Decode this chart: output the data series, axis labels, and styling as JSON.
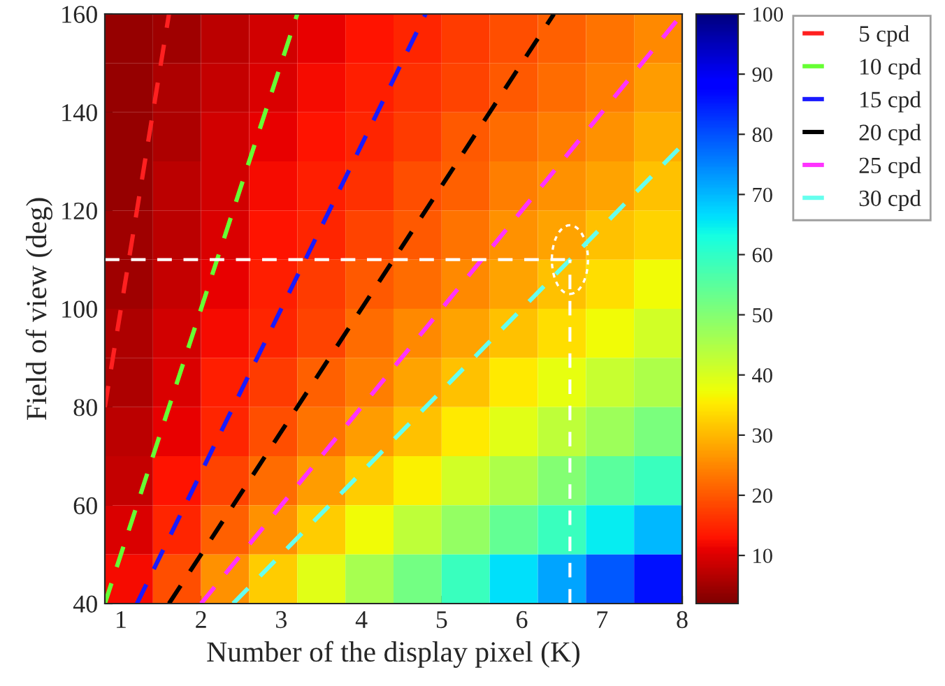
{
  "chart_data": [
    {
      "type": "heatmap",
      "xlabel": "Number of the display pixel (K)",
      "ylabel": "Field of view (deg)",
      "x": [
        1.1,
        1.7,
        2.3,
        2.9,
        3.5,
        4.1,
        4.7,
        5.3,
        5.9,
        6.5,
        7.1,
        7.7
      ],
      "y": [
        155,
        145,
        135,
        125,
        115,
        105,
        95,
        85,
        75,
        65,
        55,
        45
      ],
      "cells": [
        [
          4,
          5,
          7,
          9,
          11,
          13,
          15,
          17,
          19,
          21,
          23,
          25
        ],
        [
          4,
          6,
          8,
          10,
          12,
          14,
          16,
          18,
          20,
          22,
          24,
          27
        ],
        [
          4,
          6,
          9,
          11,
          13,
          15,
          17,
          20,
          22,
          24,
          26,
          29
        ],
        [
          4,
          7,
          9,
          12,
          14,
          16,
          19,
          21,
          24,
          26,
          28,
          31
        ],
        [
          5,
          7,
          10,
          13,
          15,
          18,
          20,
          23,
          26,
          28,
          31,
          33
        ],
        [
          5,
          8,
          11,
          14,
          17,
          20,
          22,
          25,
          28,
          31,
          34,
          37
        ],
        [
          6,
          9,
          12,
          15,
          18,
          22,
          25,
          28,
          31,
          34,
          37,
          41
        ],
        [
          6,
          10,
          14,
          17,
          21,
          24,
          28,
          31,
          35,
          38,
          42,
          45
        ],
        [
          7,
          11,
          15,
          19,
          23,
          27,
          31,
          35,
          39,
          43,
          47,
          51
        ],
        [
          8,
          13,
          18,
          22,
          27,
          32,
          36,
          41,
          45,
          50,
          55,
          59
        ],
        [
          10,
          15,
          21,
          26,
          32,
          37,
          43,
          48,
          54,
          59,
          65,
          70
        ],
        [
          12,
          19,
          26,
          32,
          39,
          46,
          52,
          59,
          66,
          72,
          79,
          86
        ]
      ],
      "clim": [
        2,
        100
      ],
      "cticks": [
        10,
        20,
        30,
        40,
        50,
        60,
        70,
        80,
        90,
        100
      ],
      "xlim": [
        0.8,
        8
      ],
      "xticks": [
        1,
        2,
        3,
        4,
        5,
        6,
        7,
        8
      ],
      "ylim": [
        40,
        160
      ],
      "yticks": [
        40,
        60,
        80,
        100,
        120,
        140,
        160
      ],
      "grid": false,
      "legend": "top right",
      "line_style": "dashed",
      "series": [
        {
          "type": "line",
          "name": "5 cpd",
          "color": "#ff2020",
          "x": [
            0.8,
            1.6
          ],
          "values": [
            80,
            160
          ]
        },
        {
          "type": "line",
          "name": "10 cpd",
          "color": "#66ff33",
          "x": [
            0.8,
            3.2
          ],
          "values": [
            40,
            160
          ]
        },
        {
          "type": "line",
          "name": "15 cpd",
          "color": "#1a1aff",
          "x": [
            1.2,
            4.8
          ],
          "values": [
            40,
            160
          ]
        },
        {
          "type": "line",
          "name": "20 cpd",
          "color": "#000000",
          "x": [
            1.6,
            6.4
          ],
          "values": [
            40,
            160
          ]
        },
        {
          "type": "line",
          "name": "25 cpd",
          "color": "#ff33ff",
          "x": [
            2.0,
            8.0
          ],
          "values": [
            40,
            160
          ]
        },
        {
          "type": "line",
          "name": "30 cpd",
          "color": "#66ffee",
          "x": [
            2.4,
            8.0
          ],
          "values": [
            40,
            133.3
          ]
        }
      ],
      "ref_lines": [
        {
          "axis": "y",
          "value": 110,
          "color": "#ffffff",
          "line_style": "dashed"
        },
        {
          "axis": "x",
          "value": 6.6,
          "color": "#ffffff",
          "line_style": "dashed"
        }
      ]
    }
  ]
}
